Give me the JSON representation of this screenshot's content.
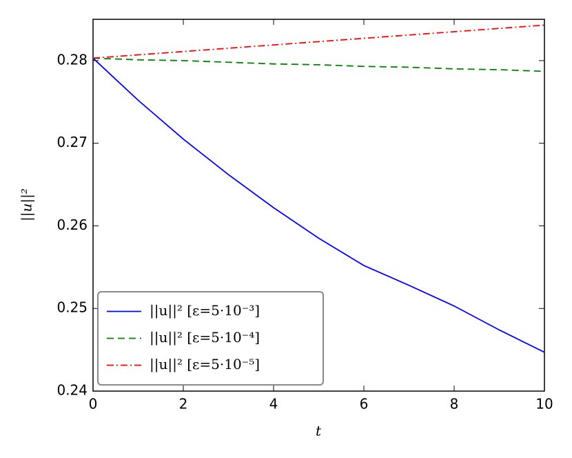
{
  "chart_data": {
    "type": "line",
    "xlabel": "t",
    "ylabel": "||u||²",
    "x": [
      0,
      1,
      2,
      3,
      4,
      5,
      6,
      7,
      8,
      9,
      10
    ],
    "series": [
      {
        "name": "||u||²  [ε=5·10⁻³]",
        "color": "#0000ff",
        "dash": "solid",
        "values": [
          0.2803,
          0.2752,
          0.2705,
          0.2662,
          0.2622,
          0.2585,
          0.2552,
          0.2528,
          0.2503,
          0.2474,
          0.2447
        ]
      },
      {
        "name": "||u||²  [ε=5·10⁻⁴]",
        "color": "#008000",
        "dash": "dashed",
        "values": [
          0.2803,
          0.2801,
          0.28,
          0.2798,
          0.2796,
          0.2795,
          0.2793,
          0.2792,
          0.279,
          0.2789,
          0.2787
        ]
      },
      {
        "name": "||u||²  [ε=5·10⁻⁵]",
        "color": "#ff0000",
        "dash": "dashdot",
        "values": [
          0.2803,
          0.2807,
          0.2811,
          0.2815,
          0.2819,
          0.2823,
          0.2827,
          0.2831,
          0.2835,
          0.2839,
          0.2843
        ]
      }
    ],
    "xlim": [
      0,
      10
    ],
    "xticks": [
      0,
      2,
      4,
      6,
      8,
      10
    ],
    "ylim": [
      0.24,
      0.285
    ],
    "yticks": [
      0.24,
      0.25,
      0.26,
      0.27,
      0.28
    ],
    "legend": "lower left",
    "grid": false
  }
}
